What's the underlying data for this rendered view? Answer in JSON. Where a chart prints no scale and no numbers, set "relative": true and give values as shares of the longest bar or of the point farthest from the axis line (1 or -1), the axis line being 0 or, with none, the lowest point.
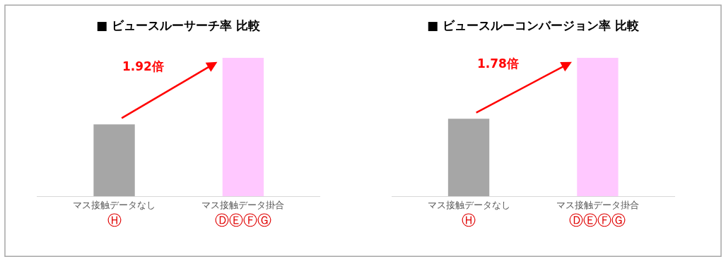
{
  "chart_data": [
    {
      "type": "bar",
      "title": "■ ビュースルーサーチ率 比較",
      "categories": [
        "マス接触データなし",
        "マス接触データ掛合"
      ],
      "values": [
        0.52,
        1
      ],
      "colors": [
        "#a6a6a6",
        "#ffc8ff"
      ],
      "relative": true,
      "annotations": [
        "1.92倍",
        "Ⓗ",
        "ⒹⒺⒻⒼ"
      ]
    },
    {
      "type": "bar",
      "title": "■ ビュースルーコンバージョン率 比較",
      "categories": [
        "マス接触データなし",
        "マス接触データ掛合"
      ],
      "values": [
        0.56,
        1
      ],
      "colors": [
        "#a6a6a6",
        "#ffc8ff"
      ],
      "relative": true,
      "annotations": [
        "1.78倍",
        "Ⓗ",
        "ⒹⒺⒻⒼ"
      ]
    }
  ]
}
